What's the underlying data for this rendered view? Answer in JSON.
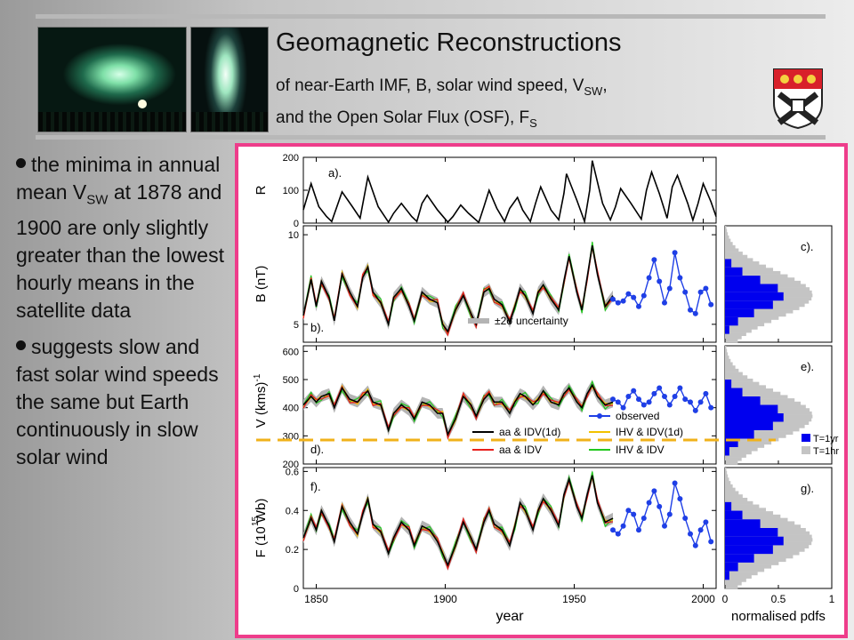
{
  "header": {
    "title": "Geomagnetic Reconstructions",
    "subtitle_1_pre": "of near-Earth IMF, B, solar wind speed, V",
    "subtitle_1_sub": "SW",
    "subtitle_1_post": ",",
    "subtitle_2_pre": "and the Open Solar Flux (OSF), F",
    "subtitle_2_sub": "S"
  },
  "bullets": [
    {
      "pre": "the minima in annual mean V",
      "sub": "SW",
      "post": " at 1878 and 1900 are only slightly greater than the lowest hourly means in the satellite data"
    },
    {
      "pre": "suggests slow and fast solar wind speeds the same but Earth continuously in slow solar wind",
      "sub": "",
      "post": ""
    }
  ],
  "colors": {
    "frame": "#ee3d8b",
    "reconstruction_black": "#000000",
    "reconstruction_red": "#e8201c",
    "reconstruction_green": "#22c81e",
    "ihv_idv_1d": "#f2c200",
    "uncertainty_grey": "#b4b4b4",
    "observed_blue": "#1f3fe6",
    "pdf_blue": "#0000ee",
    "pdf_grey": "#c4c4c4",
    "dashed_line": "#f0b21a"
  },
  "icons": {
    "header_photo_1": "aurora-photo",
    "header_photo_2": "aurora-photo",
    "crest": "university-crest"
  },
  "chart_data": [
    {
      "type": "line",
      "panel_label": "a).",
      "ylabel": "R",
      "ylim": [
        0,
        200
      ],
      "yticks": [
        0,
        100,
        200
      ],
      "xlim": [
        1845,
        2005
      ],
      "series": [
        {
          "color": "#000000",
          "x": [
            1845,
            1848,
            1851,
            1854,
            1856,
            1860,
            1864,
            1867,
            1870,
            1874,
            1878,
            1880,
            1883,
            1887,
            1889,
            1891,
            1893,
            1897,
            1901,
            1903,
            1906,
            1909,
            1913,
            1915,
            1917,
            1920,
            1923,
            1925,
            1928,
            1930,
            1933,
            1935,
            1937,
            1941,
            1944,
            1946,
            1947,
            1951,
            1954,
            1956,
            1957,
            1961,
            1964,
            1966,
            1968,
            1972,
            1976,
            1978,
            1980,
            1983,
            1986,
            1988,
            1990,
            1994,
            1996,
            1998,
            2000,
            2003,
            2005
          ],
          "y": [
            40,
            120,
            50,
            20,
            5,
            95,
            50,
            15,
            140,
            50,
            3,
            30,
            60,
            20,
            5,
            60,
            85,
            40,
            3,
            20,
            55,
            30,
            2,
            50,
            100,
            45,
            5,
            45,
            78,
            40,
            5,
            60,
            110,
            40,
            10,
            90,
            150,
            70,
            5,
            100,
            190,
            60,
            10,
            50,
            105,
            60,
            12,
            100,
            155,
            90,
            15,
            110,
            145,
            60,
            9,
            60,
            120,
            65,
            20
          ]
        }
      ]
    },
    {
      "type": "line",
      "panel_label": "b).",
      "ylabel": "B  (nT)",
      "ylim": [
        4,
        10.5
      ],
      "yticks": [
        5,
        10
      ],
      "legend": [
        "±2σ uncertainty"
      ],
      "series": [
        {
          "color": "#000000",
          "x": [
            1845,
            1848,
            1850,
            1852,
            1855,
            1857,
            1860,
            1863,
            1866,
            1868,
            1870,
            1872,
            1875,
            1878,
            1880,
            1883,
            1886,
            1888,
            1891,
            1894,
            1897,
            1899,
            1901,
            1904,
            1907,
            1910,
            1912,
            1915,
            1917,
            1919,
            1922,
            1925,
            1927,
            1929,
            1931,
            1934,
            1936,
            1938,
            1941,
            1944,
            1946,
            1948,
            1951,
            1953,
            1955,
            1957,
            1959,
            1962,
            1965
          ],
          "y": [
            5.5,
            7.5,
            6.0,
            7.4,
            6.5,
            5.2,
            7.8,
            6.8,
            6.0,
            7.6,
            8.2,
            6.8,
            6.2,
            5.0,
            6.5,
            7.0,
            6.0,
            5.2,
            6.8,
            6.4,
            6.2,
            5.0,
            4.6,
            5.8,
            6.6,
            5.6,
            5.0,
            6.8,
            7.0,
            6.4,
            6.1,
            5.1,
            6.0,
            7.0,
            6.6,
            5.6,
            6.8,
            7.2,
            6.4,
            5.8,
            7.4,
            8.8,
            6.8,
            5.8,
            7.6,
            9.4,
            7.8,
            6.0,
            6.6
          ]
        },
        {
          "color": "#1f3fe6",
          "marker": true,
          "x": [
            1965,
            1967,
            1969,
            1971,
            1973,
            1975,
            1977,
            1979,
            1981,
            1983,
            1985,
            1987,
            1989,
            1991,
            1993,
            1995,
            1997,
            1999,
            2001,
            2003
          ],
          "y": [
            6.4,
            6.2,
            6.3,
            6.7,
            6.5,
            6.0,
            6.6,
            7.6,
            8.6,
            7.4,
            6.2,
            7.0,
            9.0,
            7.6,
            6.8,
            5.8,
            5.6,
            6.8,
            7.0,
            6.1
          ]
        }
      ]
    },
    {
      "type": "line",
      "panel_label": "d).",
      "ylabel": "V  (kms)",
      "ylim": [
        200,
        620
      ],
      "yticks": [
        200,
        300,
        400,
        500,
        600
      ],
      "legend": [
        "observed",
        "aa  & IDV(1d)",
        "aa  & IDV",
        "IHV & IDV(1d)",
        "IHV & IDV"
      ],
      "series": [
        {
          "color": "#000000",
          "x": [
            1845,
            1848,
            1850,
            1852,
            1855,
            1857,
            1860,
            1863,
            1866,
            1868,
            1870,
            1872,
            1875,
            1878,
            1880,
            1883,
            1886,
            1888,
            1891,
            1894,
            1897,
            1899,
            1901,
            1904,
            1907,
            1910,
            1912,
            1915,
            1917,
            1919,
            1922,
            1925,
            1927,
            1929,
            1931,
            1934,
            1936,
            1938,
            1941,
            1944,
            1946,
            1948,
            1951,
            1953,
            1955,
            1957,
            1959,
            1962,
            1965
          ],
          "y": [
            410,
            440,
            420,
            440,
            450,
            400,
            470,
            430,
            420,
            440,
            460,
            420,
            410,
            320,
            380,
            410,
            390,
            360,
            420,
            410,
            380,
            380,
            305,
            360,
            440,
            410,
            370,
            430,
            450,
            420,
            420,
            380,
            420,
            450,
            440,
            410,
            430,
            460,
            420,
            410,
            450,
            470,
            420,
            400,
            450,
            480,
            440,
            410,
            420
          ]
        },
        {
          "color": "#1f3fe6",
          "marker": true,
          "x": [
            1965,
            1967,
            1969,
            1971,
            1973,
            1975,
            1977,
            1979,
            1981,
            1983,
            1985,
            1987,
            1989,
            1991,
            1993,
            1995,
            1997,
            1999,
            2001,
            2003
          ],
          "y": [
            430,
            420,
            400,
            440,
            460,
            430,
            410,
            420,
            450,
            470,
            440,
            410,
            440,
            470,
            430,
            420,
            390,
            420,
            450,
            400
          ]
        }
      ]
    },
    {
      "type": "line",
      "panel_label": "f).",
      "ylabel": "F  (10  Wb)",
      "ylim": [
        0,
        0.62
      ],
      "yticks": [
        0,
        0.2,
        0.4,
        0.6
      ],
      "xlabel": "year",
      "xticks": [
        1850,
        1900,
        1950,
        2000
      ],
      "series": [
        {
          "color": "#000000",
          "x": [
            1845,
            1848,
            1850,
            1852,
            1855,
            1857,
            1860,
            1863,
            1866,
            1868,
            1870,
            1872,
            1875,
            1878,
            1880,
            1883,
            1886,
            1888,
            1891,
            1894,
            1897,
            1899,
            1901,
            1904,
            1907,
            1910,
            1912,
            1915,
            1917,
            1919,
            1922,
            1925,
            1927,
            1929,
            1931,
            1934,
            1936,
            1938,
            1941,
            1944,
            1946,
            1948,
            1951,
            1953,
            1955,
            1957,
            1959,
            1962,
            1965
          ],
          "y": [
            0.26,
            0.36,
            0.3,
            0.4,
            0.32,
            0.24,
            0.42,
            0.34,
            0.28,
            0.38,
            0.46,
            0.33,
            0.29,
            0.18,
            0.26,
            0.34,
            0.3,
            0.22,
            0.32,
            0.3,
            0.24,
            0.18,
            0.12,
            0.22,
            0.34,
            0.26,
            0.2,
            0.34,
            0.4,
            0.33,
            0.3,
            0.22,
            0.32,
            0.44,
            0.4,
            0.3,
            0.4,
            0.46,
            0.4,
            0.32,
            0.48,
            0.56,
            0.42,
            0.36,
            0.48,
            0.58,
            0.44,
            0.34,
            0.36
          ]
        },
        {
          "color": "#1f3fe6",
          "marker": true,
          "x": [
            1965,
            1967,
            1969,
            1971,
            1973,
            1975,
            1977,
            1979,
            1981,
            1983,
            1985,
            1987,
            1989,
            1991,
            1993,
            1995,
            1997,
            1999,
            2001,
            2003
          ],
          "y": [
            0.3,
            0.28,
            0.32,
            0.4,
            0.38,
            0.3,
            0.36,
            0.44,
            0.5,
            0.42,
            0.32,
            0.38,
            0.54,
            0.46,
            0.36,
            0.28,
            0.22,
            0.3,
            0.34,
            0.24
          ]
        }
      ]
    },
    {
      "type": "bar",
      "panel_label": "c).",
      "xlabel": "normalised pdfs",
      "xlim": [
        0,
        1
      ],
      "xticks": [
        0,
        0.5,
        1
      ],
      "legend": [
        "T=1yr",
        "T=1hr"
      ]
    },
    {
      "type": "bar",
      "panel_label": "e).",
      "legend": [
        "T=1yr",
        "T=1hr"
      ]
    },
    {
      "type": "bar",
      "panel_label": "g).",
      "legend": [
        "T=1yr",
        "T=1hr"
      ]
    }
  ]
}
